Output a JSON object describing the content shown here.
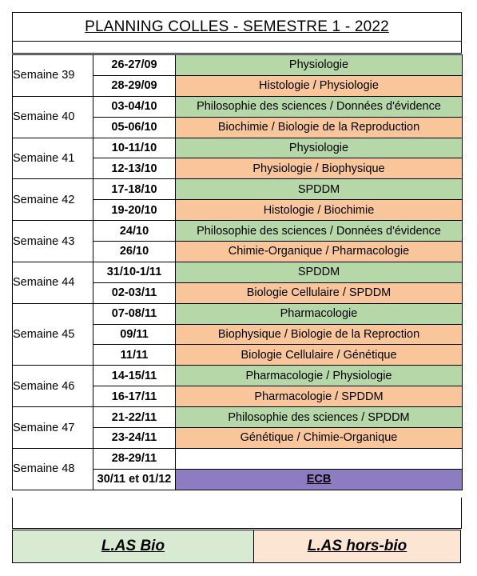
{
  "title": "PLANNING COLLES - SEMESTRE 1 - 2022",
  "colors": {
    "green": "#b6d7a8",
    "orange": "#f9c59b",
    "purple": "#8e7cc3",
    "legend_bio": "#d9ead3",
    "legend_hors_bio": "#fce5d2"
  },
  "weeks": [
    {
      "label": "Semaine 39",
      "rows": [
        {
          "date": "26-27/09",
          "subject": "Physiologie",
          "color": "green"
        },
        {
          "date": "28-29/09",
          "subject": "Histologie / Physiologie",
          "color": "orange"
        }
      ]
    },
    {
      "label": "Semaine 40",
      "rows": [
        {
          "date": "03-04/10",
          "subject": "Philosophie des sciences / Données d'évidence",
          "color": "green"
        },
        {
          "date": "05-06/10",
          "subject": "Biochimie / Biologie de la Reproduction",
          "color": "orange"
        }
      ]
    },
    {
      "label": "Semaine 41",
      "rows": [
        {
          "date": "10-11/10",
          "subject": "Physiologie",
          "color": "green"
        },
        {
          "date": "12-13/10",
          "subject": "Physiologie / Biophysique",
          "color": "orange"
        }
      ]
    },
    {
      "label": "Semaine 42",
      "rows": [
        {
          "date": "17-18/10",
          "subject": "SPDDM",
          "color": "green"
        },
        {
          "date": "19-20/10",
          "subject": "Histologie / Biochimie",
          "color": "orange"
        }
      ]
    },
    {
      "label": "Semaine 43",
      "rows": [
        {
          "date": "24/10",
          "subject": "Philosophie des sciences / Données d'évidence",
          "color": "green"
        },
        {
          "date": "26/10",
          "subject": "Chimie-Organique / Pharmacologie",
          "color": "orange"
        }
      ]
    },
    {
      "label": "Semaine 44",
      "rows": [
        {
          "date": "31/10-1/11",
          "subject": "SPDDM",
          "color": "green"
        },
        {
          "date": "02-03/11",
          "subject": "Biologie Cellulaire / SPDDM",
          "color": "orange"
        }
      ]
    },
    {
      "label": "Semaine 45",
      "rows": [
        {
          "date": "07-08/11",
          "subject": "Pharmacologie",
          "color": "green"
        },
        {
          "date": "09/11",
          "subject": "Biophysique / Biologie de la Reproction",
          "color": "orange"
        },
        {
          "date": "11/11",
          "subject": "Biologie Cellulaire / Génétique",
          "color": "orange"
        }
      ]
    },
    {
      "label": "Semaine 46",
      "rows": [
        {
          "date": "14-15/11",
          "subject": "Pharmacologie / Physiologie",
          "color": "green"
        },
        {
          "date": "16-17/11",
          "subject": "Pharmacologie / SPDDM",
          "color": "orange"
        }
      ]
    },
    {
      "label": "Semaine 47",
      "rows": [
        {
          "date": "21-22/11",
          "subject": "Philosophie des sciences / SPDDM",
          "color": "green"
        },
        {
          "date": "23-24/11",
          "subject": "Génétique / Chimie-Organique",
          "color": "orange"
        }
      ]
    },
    {
      "label": "Semaine 48",
      "rows": [
        {
          "date": "28-29/11",
          "subject": "",
          "color": "blank"
        },
        {
          "date": "30/11 et 01/12",
          "subject": "ECB",
          "color": "purple"
        }
      ]
    }
  ],
  "legend": {
    "bio": "L.AS Bio",
    "hors_bio": "L.AS hors-bio"
  }
}
